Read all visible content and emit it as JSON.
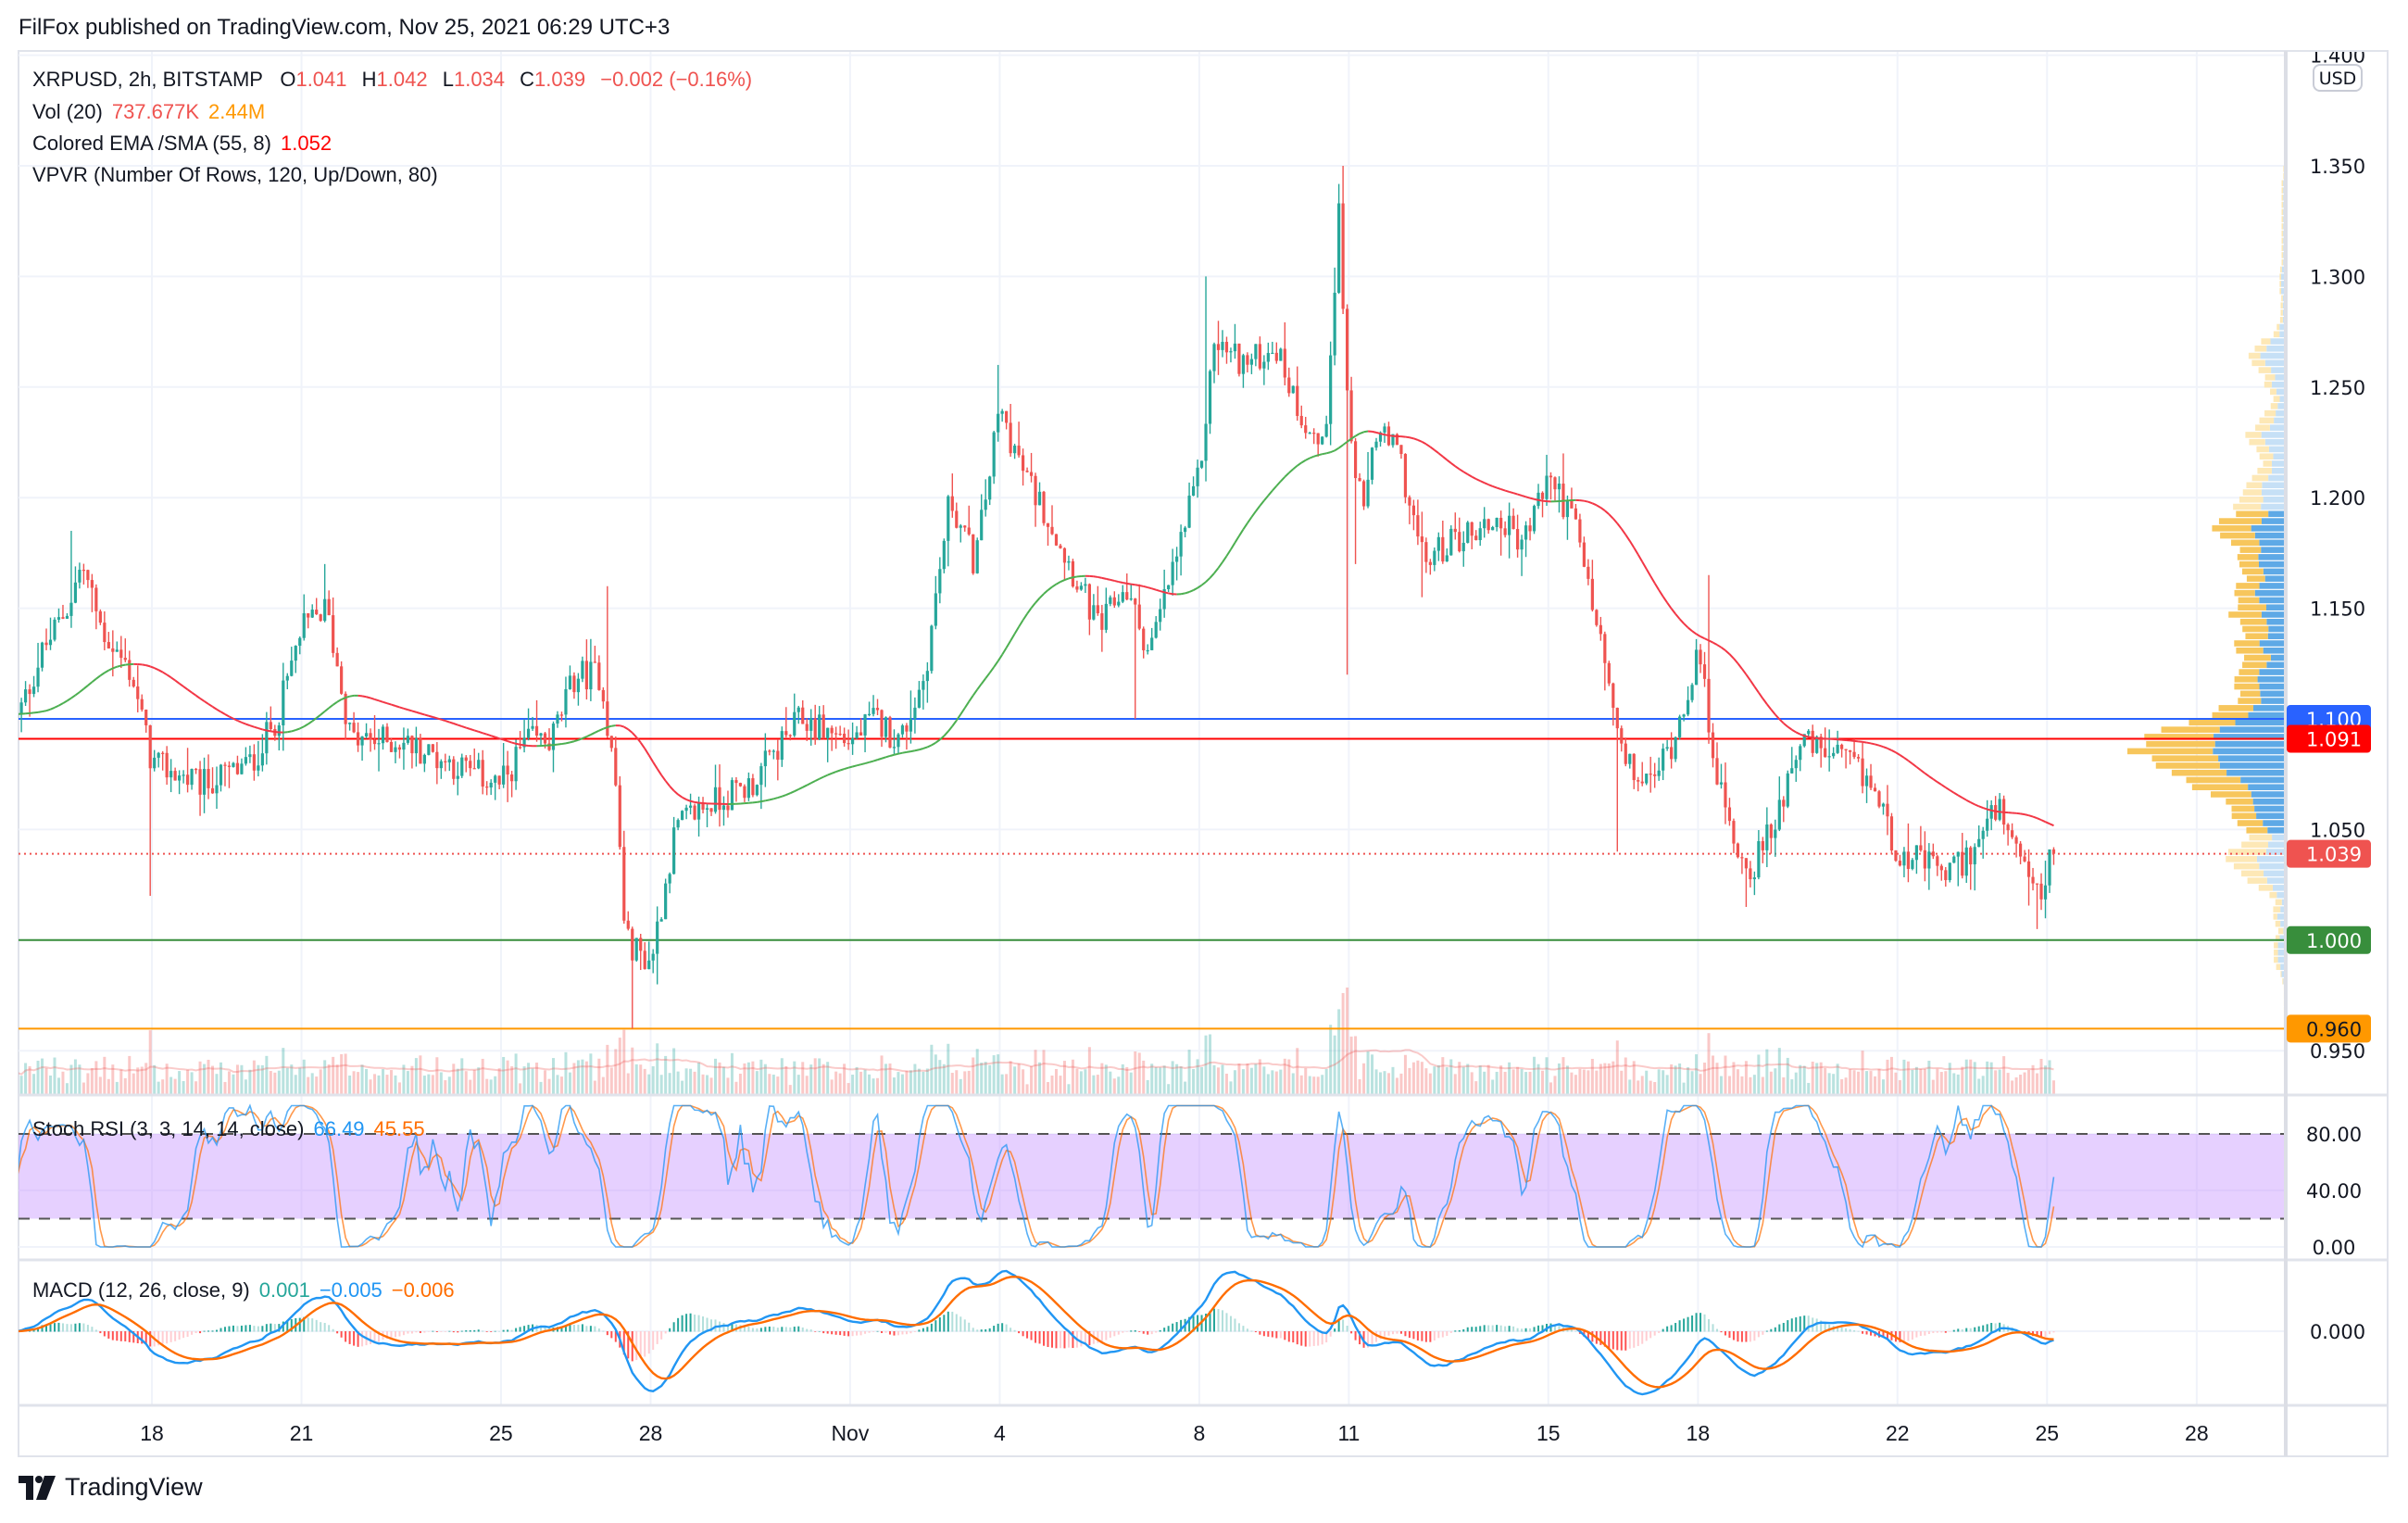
{
  "title": "FilFox published on TradingView.com, Nov 25, 2021 06:29 UTC+3",
  "legend": {
    "symbol": "XRPUSD, 2h, BITSTAMP",
    "o_label": "O",
    "o": "1.041",
    "h_label": "H",
    "h": "1.042",
    "l_label": "L",
    "l": "1.034",
    "c_label": "C",
    "c": "1.039",
    "change": "−0.002 (−0.16%)",
    "vol_label": "Vol (20)",
    "vol": "737.677K",
    "vol_ma": "2.44M",
    "ema_label": "Colored EMA /SMA (55, 8)",
    "ema": "1.052",
    "vpvr_label": "VPVR (Number Of Rows, 120, Up/Down, 80)",
    "stoch_label": "Stoch RSI (3, 3, 14, 14, close)",
    "stoch_k": "66.49",
    "stoch_d": "45.55",
    "macd_label": "MACD (12, 26, close, 9)",
    "macd_hist": "0.001",
    "macd": "−0.005",
    "macd_signal": "−0.006"
  },
  "currency_badge": "USD",
  "logo_text": "TradingView",
  "colors": {
    "up": "#26a69a",
    "down": "#ef5350",
    "k": "#2196f3",
    "d": "#ff6d00",
    "vp_up": "#5ea9e6",
    "vp_down": "#f7c65c",
    "vp_up_light": "#c6e0f6",
    "vp_down_light": "#fde8b6"
  },
  "price_axis": {
    "ticks": [
      {
        "label": "1.400",
        "value": 1.4
      },
      {
        "label": "1.350",
        "value": 1.35
      },
      {
        "label": "1.300",
        "value": 1.3
      },
      {
        "label": "1.250",
        "value": 1.25
      },
      {
        "label": "1.200",
        "value": 1.2
      },
      {
        "label": "1.150",
        "value": 1.15
      },
      {
        "label": "1.050",
        "value": 1.05
      },
      {
        "label": "0.950",
        "value": 0.95
      }
    ],
    "price_lines": [
      {
        "label": "1.100",
        "value": 1.1,
        "color": "#2962ff",
        "style": "solid"
      },
      {
        "label": "1.091",
        "value": 1.091,
        "color": "#ff0000",
        "style": "solid"
      },
      {
        "label": "1.039",
        "value": 1.039,
        "color": "#ef5350",
        "style": "dotted"
      },
      {
        "label": "1.000",
        "value": 1.0,
        "color": "#388e3c",
        "style": "solid"
      },
      {
        "label": "0.960",
        "value": 0.96,
        "color": "#ff9800",
        "style": "solid"
      }
    ]
  },
  "stoch_axis": [
    {
      "label": "80.00",
      "value": 80
    },
    {
      "label": "40.00",
      "value": 40
    },
    {
      "label": "0.00",
      "value": 0
    }
  ],
  "macd_axis": [
    {
      "label": "0.000",
      "value": 0
    }
  ],
  "time_axis": [
    {
      "label": "18",
      "day": 18
    },
    {
      "label": "21",
      "day": 21
    },
    {
      "label": "25",
      "day": 25
    },
    {
      "label": "28",
      "day": 28
    },
    {
      "label": "Nov",
      "day": 32
    },
    {
      "label": "4",
      "day": 35
    },
    {
      "label": "8",
      "day": 39
    },
    {
      "label": "11",
      "day": 42
    },
    {
      "label": "15",
      "day": 46
    },
    {
      "label": "18",
      "day": 49
    },
    {
      "label": "22",
      "day": 53
    },
    {
      "label": "25",
      "day": 56
    },
    {
      "label": "28",
      "day": 59
    }
  ],
  "chart_data": {
    "type": "candlestick",
    "symbol": "XRPUSD",
    "interval_hours": 2,
    "x_unit": "day (Oct d = d, Nov d = 31 + d)",
    "start_day": 15.3,
    "end_day": 56.15,
    "ylim": [
      0.95,
      1.4
    ],
    "price_path": [
      [
        15.3,
        1.1
      ],
      [
        15.8,
        1.13
      ],
      [
        16.3,
        1.15
      ],
      [
        16.6,
        1.17
      ],
      [
        17.0,
        1.14
      ],
      [
        17.6,
        1.12
      ],
      [
        18.0,
        1.08
      ],
      [
        19.0,
        1.07
      ],
      [
        20.0,
        1.08
      ],
      [
        20.5,
        1.1
      ],
      [
        21.0,
        1.14
      ],
      [
        21.5,
        1.15
      ],
      [
        22.0,
        1.09
      ],
      [
        23.0,
        1.09
      ],
      [
        24.0,
        1.08
      ],
      [
        25.0,
        1.07
      ],
      [
        25.5,
        1.09
      ],
      [
        26.0,
        1.09
      ],
      [
        26.5,
        1.12
      ],
      [
        27.0,
        1.12
      ],
      [
        27.3,
        1.07
      ],
      [
        27.5,
        1.0
      ],
      [
        28.0,
        0.99
      ],
      [
        28.5,
        1.05
      ],
      [
        29.0,
        1.06
      ],
      [
        30.0,
        1.07
      ],
      [
        31.0,
        1.1
      ],
      [
        32.0,
        1.09
      ],
      [
        32.5,
        1.1
      ],
      [
        33.0,
        1.09
      ],
      [
        33.5,
        1.12
      ],
      [
        34.0,
        1.2
      ],
      [
        34.5,
        1.17
      ],
      [
        35.0,
        1.24
      ],
      [
        35.5,
        1.21
      ],
      [
        36.0,
        1.19
      ],
      [
        37.0,
        1.14
      ],
      [
        37.5,
        1.16
      ],
      [
        38.0,
        1.13
      ],
      [
        38.5,
        1.17
      ],
      [
        39.0,
        1.21
      ],
      [
        39.3,
        1.27
      ],
      [
        40.0,
        1.26
      ],
      [
        40.5,
        1.27
      ],
      [
        41.0,
        1.24
      ],
      [
        41.5,
        1.22
      ],
      [
        41.8,
        1.33
      ],
      [
        42.0,
        1.23
      ],
      [
        42.3,
        1.19
      ],
      [
        42.5,
        1.23
      ],
      [
        43.0,
        1.22
      ],
      [
        43.5,
        1.17
      ],
      [
        44.0,
        1.18
      ],
      [
        45.0,
        1.19
      ],
      [
        45.5,
        1.18
      ],
      [
        46.0,
        1.21
      ],
      [
        46.5,
        1.19
      ],
      [
        47.0,
        1.14
      ],
      [
        47.5,
        1.08
      ],
      [
        48.0,
        1.07
      ],
      [
        48.5,
        1.09
      ],
      [
        49.0,
        1.13
      ],
      [
        49.5,
        1.06
      ],
      [
        50.0,
        1.03
      ],
      [
        50.5,
        1.05
      ],
      [
        51.0,
        1.09
      ],
      [
        52.0,
        1.08
      ],
      [
        52.5,
        1.07
      ],
      [
        53.0,
        1.04
      ],
      [
        54.0,
        1.03
      ],
      [
        54.5,
        1.04
      ],
      [
        55.0,
        1.06
      ],
      [
        55.5,
        1.03
      ],
      [
        56.0,
        1.02
      ],
      [
        56.15,
        1.039
      ]
    ],
    "wicks": [
      [
        16.4,
        1.185
      ],
      [
        18.0,
        1.02
      ],
      [
        21.5,
        1.17
      ],
      [
        27.1,
        1.16
      ],
      [
        27.6,
        0.96
      ],
      [
        28.1,
        0.98
      ],
      [
        35.0,
        1.26
      ],
      [
        37.7,
        1.1
      ],
      [
        39.1,
        1.3
      ],
      [
        41.85,
        1.35
      ],
      [
        41.95,
        1.12
      ],
      [
        42.1,
        1.17
      ],
      [
        43.5,
        1.155
      ],
      [
        46.3,
        1.22
      ],
      [
        47.4,
        1.04
      ],
      [
        49.2,
        1.165
      ],
      [
        50.0,
        1.015
      ],
      [
        55.8,
        1.005
      ]
    ],
    "last_candle": {
      "open": 1.041,
      "high": 1.042,
      "low": 1.034,
      "close": 1.039
    }
  }
}
